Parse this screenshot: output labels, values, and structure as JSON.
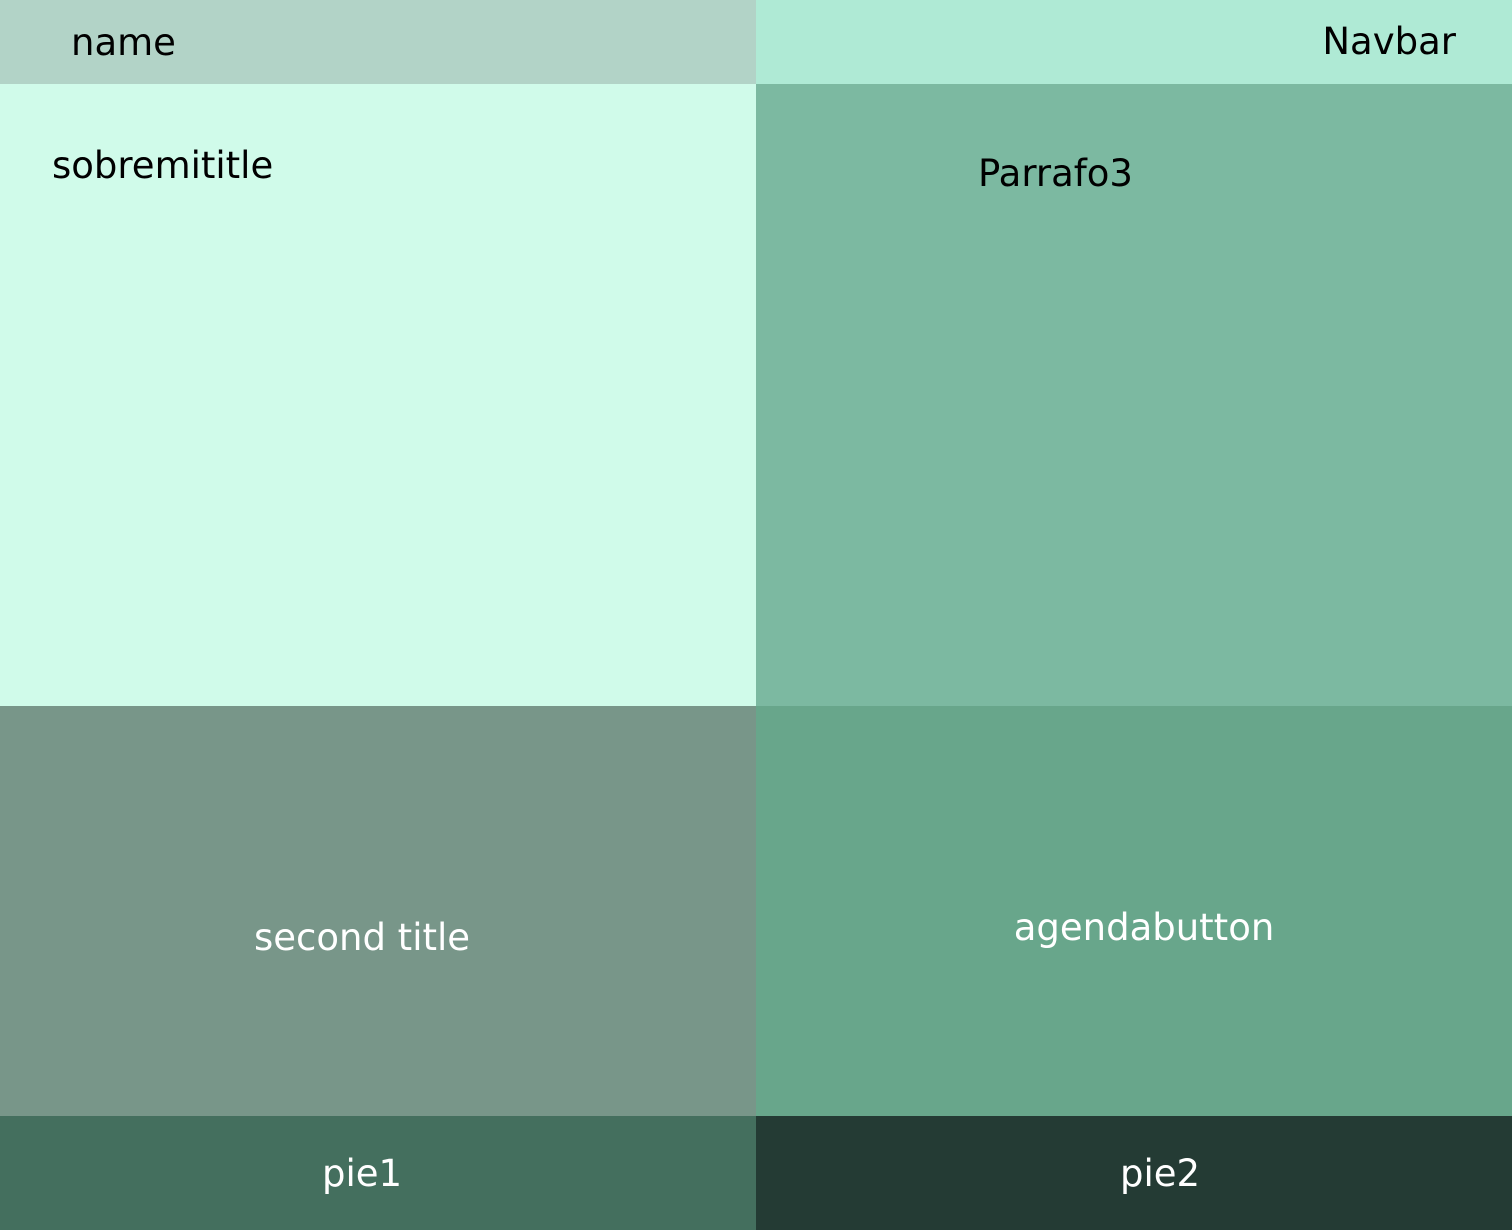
{
  "colors": {
    "name_bg": "#b2d3c7",
    "navbar_bg": "#afead5",
    "sobremititle_bg": "#d0fbea",
    "parrafo3_bg": "#7cb9a1",
    "second_title_bg": "#789689",
    "agendabutton_bg": "#68a68b",
    "pie1_bg": "#446f5e",
    "pie2_bg": "#243b34"
  },
  "header": {
    "name": "name",
    "navbar": "Navbar"
  },
  "main": {
    "sobremititle": "sobremititle",
    "parrafo3": "Parrafo3",
    "second_title": "second title",
    "agendabutton": "agendabutton"
  },
  "footer": {
    "pie1": "pie1",
    "pie2": "pie2"
  }
}
